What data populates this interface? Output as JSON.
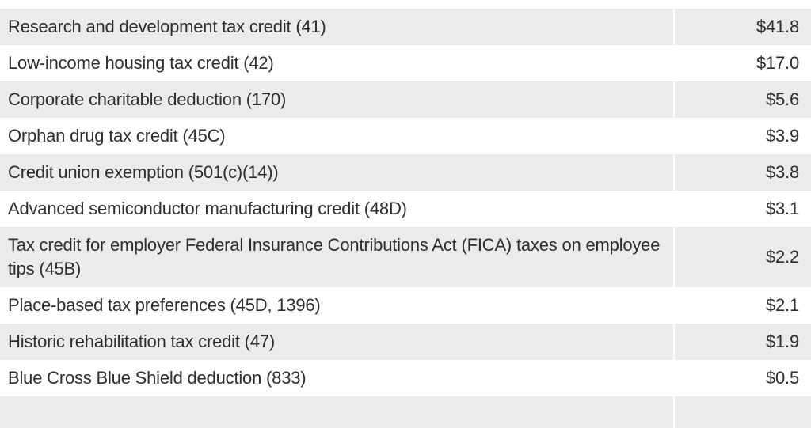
{
  "colors": {
    "row_shaded": "#ebebeb",
    "row_plain": "#ffffff",
    "text": "#2d2d2d",
    "background": "#ffffff"
  },
  "chart_data": {
    "type": "table",
    "categories": [
      "Research and development tax credit (41)",
      "Low-income housing tax credit (42)",
      "Corporate charitable deduction (170)",
      "Orphan drug tax credit (45C)",
      "Credit union exemption (501(c)(14))",
      "Advanced semiconductor manufacturing credit (48D)",
      "Tax credit for employer Federal Insurance Contributions Act (FICA) taxes on employee tips (45B)",
      "Place-based tax preferences (45D, 1396)",
      "Historic rehabilitation tax credit (47)",
      "Blue Cross Blue Shield deduction (833)"
    ],
    "values": [
      41.8,
      17.0,
      5.6,
      3.9,
      3.8,
      3.1,
      2.2,
      2.1,
      1.9,
      0.5
    ],
    "values_display": [
      "$41.8",
      "$17.0",
      "$5.6",
      "$3.9",
      "$3.8",
      "$3.1",
      "$2.2",
      "$2.1",
      "$1.9",
      "$0.5"
    ]
  },
  "table": {
    "rows": [
      {
        "label": "Research and development tax credit (41)",
        "value": "$41.8"
      },
      {
        "label": "Low-income housing tax credit (42)",
        "value": "$17.0"
      },
      {
        "label": "Corporate charitable deduction (170)",
        "value": "$5.6"
      },
      {
        "label": "Orphan drug tax credit (45C)",
        "value": "$3.9"
      },
      {
        "label": "Credit union exemption (501(c)(14))",
        "value": "$3.8"
      },
      {
        "label": "Advanced semiconductor manufacturing credit (48D)",
        "value": "$3.1"
      },
      {
        "label": "Tax credit for employer Federal Insurance Contributions Act (FICA) taxes on employee tips (45B)",
        "value": "$2.2"
      },
      {
        "label": "Place-based tax preferences (45D, 1396)",
        "value": "$2.1"
      },
      {
        "label": "Historic rehabilitation tax credit (47)",
        "value": "$1.9"
      },
      {
        "label": "Blue Cross Blue Shield deduction (833)",
        "value": "$0.5"
      }
    ],
    "partial_row_visible": true
  }
}
